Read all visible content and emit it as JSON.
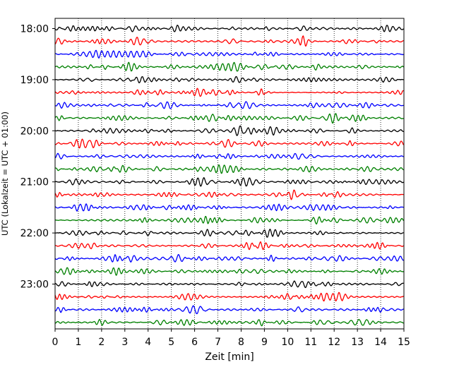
{
  "chart_data": {
    "type": "line",
    "title": "",
    "xlabel": "Zeit  [min]",
    "ylabel": "UTC (Lokalzeit = UTC + 01:00)",
    "xlim": [
      0,
      15
    ],
    "x_ticks": [
      "0",
      "1",
      "2",
      "3",
      "4",
      "5",
      "6",
      "7",
      "8",
      "9",
      "10",
      "11",
      "12",
      "13",
      "14",
      "15"
    ],
    "y_ticks": [
      "18:00",
      "19:00",
      "20:00",
      "21:00",
      "22:00",
      "23:00"
    ],
    "vertical_grid": "dotted",
    "legend": "none",
    "trace_interval_minutes": 15,
    "trace_count": 24,
    "trace_colors": [
      "#000000",
      "#ff0000",
      "#0000ff",
      "#008000"
    ],
    "traces_start": "18:00"
  }
}
